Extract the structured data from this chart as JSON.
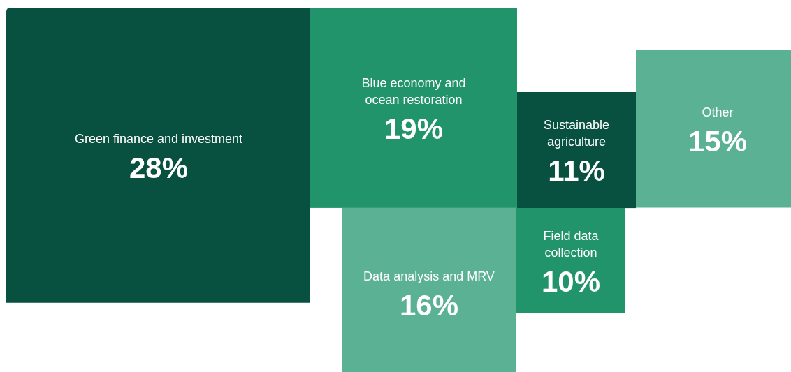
{
  "chart_data": {
    "type": "other",
    "categories": [
      "Green finance and investment",
      "Blue economy and ocean restoration",
      "Sustainable agriculture",
      "Other",
      "Data analysis and MRV",
      "Field data collection"
    ],
    "values": [
      28,
      19,
      11,
      15,
      16,
      10
    ],
    "value_labels": [
      "28%",
      "19%",
      "11%",
      "15%",
      "16%",
      "10%"
    ],
    "colors": [
      "#085040",
      "#21946b",
      "#085040",
      "#5bb193",
      "#5bb193",
      "#21946b"
    ]
  }
}
